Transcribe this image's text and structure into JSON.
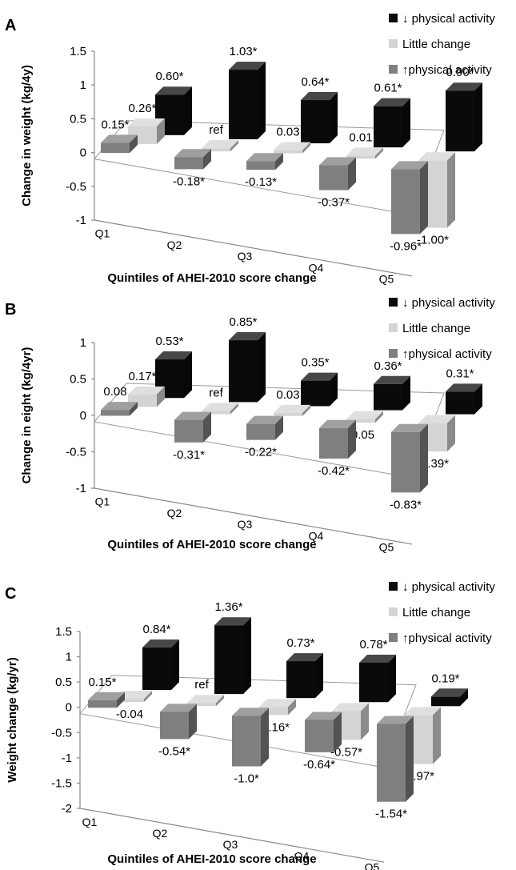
{
  "colors": {
    "decreased": "#0a0a0a",
    "little_change": "#d4d4d4",
    "increased": "#7f7f7f"
  },
  "chart_data": [
    {
      "type": "bar",
      "panel": "A",
      "ylabel": "Change in weight (kg/4y)",
      "xlabel": "Quintiles of AHEI-2010 score change",
      "categories": [
        "Q1",
        "Q2",
        "Q3",
        "Q4",
        "Q5"
      ],
      "yticks": [
        "1.5",
        "1",
        "0.5",
        "0",
        "-0.5",
        "-1"
      ],
      "ylim": [
        -1,
        1.5
      ],
      "series": [
        {
          "name": "↓ physical activity",
          "values": [
            0.6,
            1.03,
            0.64,
            0.61,
            0.9
          ],
          "labels": [
            "0.60*",
            "1.03*",
            "0.64*",
            "0.61*",
            "0.90*"
          ]
        },
        {
          "name": "Little change",
          "values": [
            0.26,
            0.0,
            0.03,
            0.01,
            -1.0
          ],
          "labels": [
            "0.26*",
            "ref",
            "0.03",
            "0.01",
            "-1.00*"
          ]
        },
        {
          "name": "↑physical activity",
          "values": [
            0.15,
            -0.18,
            -0.13,
            -0.37,
            -0.96
          ],
          "labels": [
            "0.15*",
            "-0.18*",
            "-0.13*",
            "-0.37*",
            "-0.96*"
          ]
        }
      ],
      "legend_position": "top-right",
      "grid": false
    },
    {
      "type": "bar",
      "panel": "B",
      "ylabel": "Change in eight (kg/4yr)",
      "xlabel": "Quintiles of AHEI-2010 score change",
      "categories": [
        "Q1",
        "Q2",
        "Q3",
        "Q4",
        "Q5"
      ],
      "yticks": [
        "1",
        "0.5",
        "0",
        "-0.5",
        "-1"
      ],
      "ylim": [
        -1,
        1
      ],
      "series": [
        {
          "name": "↓ physical activity",
          "values": [
            0.53,
            0.85,
            0.35,
            0.36,
            0.31
          ],
          "labels": [
            "0.53*",
            "0.85*",
            "0.35*",
            "0.36*",
            "0.31*"
          ]
        },
        {
          "name": "Little change",
          "values": [
            0.17,
            0.0,
            0.03,
            -0.05,
            -0.39
          ],
          "labels": [
            "0.17*",
            "ref",
            "0.03",
            "-0.05",
            "-0.39*"
          ]
        },
        {
          "name": "↑physical activity",
          "values": [
            0.08,
            -0.31,
            -0.22,
            -0.42,
            -0.83
          ],
          "labels": [
            "0.08",
            "-0.31*",
            "-0.22*",
            "-0.42*",
            "-0.83*"
          ]
        }
      ],
      "legend_position": "top-right",
      "grid": false
    },
    {
      "type": "bar",
      "panel": "C",
      "ylabel": "Weight change (kg/yr)",
      "xlabel": "Quintiles of AHEI-2010 score change",
      "categories": [
        "Q1",
        "Q2",
        "Q3",
        "Q4",
        "Q5"
      ],
      "yticks": [
        "1.5",
        "1",
        "0.5",
        "0",
        "-0.5",
        "-1",
        "-1.5",
        "-2"
      ],
      "ylim": [
        -2,
        1.5
      ],
      "series": [
        {
          "name": "↓ physical activity",
          "values": [
            0.84,
            1.36,
            0.73,
            0.78,
            0.19
          ],
          "labels": [
            "0.84*",
            "1.36*",
            "0.73*",
            "0.78*",
            "0.19*"
          ]
        },
        {
          "name": "Little change",
          "values": [
            -0.04,
            0.0,
            -0.16,
            -0.57,
            -0.97
          ],
          "labels": [
            "-0.04",
            "ref",
            "-0.16*",
            "-0.57*",
            "-0.97*"
          ]
        },
        {
          "name": "↑physical activity",
          "values": [
            0.15,
            -0.54,
            -1.0,
            -0.64,
            -1.54
          ],
          "labels": [
            "0.15*",
            "-0.54*",
            "-1.0*",
            "-0.64*",
            "-1.54*"
          ]
        }
      ],
      "legend_position": "top-right",
      "grid": false
    }
  ]
}
